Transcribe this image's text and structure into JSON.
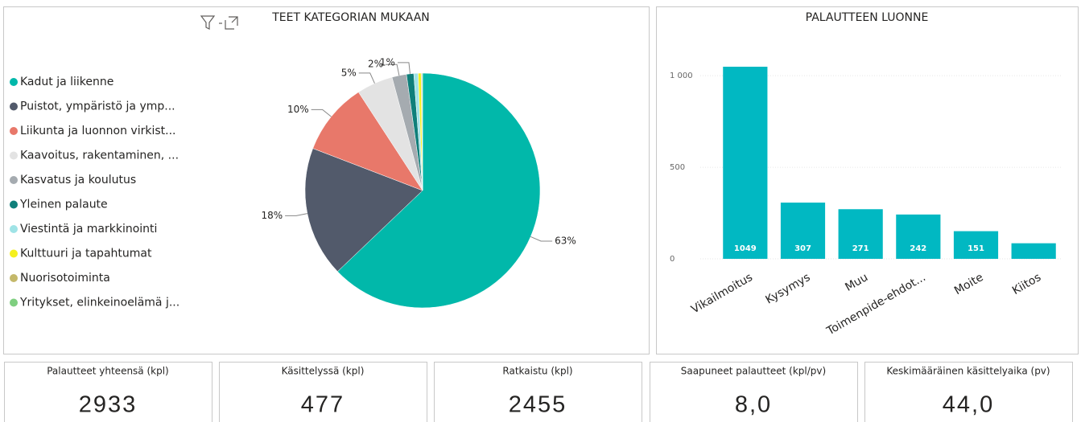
{
  "chart_data": [
    {
      "type": "pie",
      "title": "TEET KATEGORIAN MUKAAN",
      "categories": [
        "Kadut ja liikenne",
        "Puistot, ympäristö ja ymp...",
        "Liikunta ja luonnon virkist...",
        "Kaavoitus, rakentaminen, ...",
        "Kasvatus ja koulutus",
        "Yleinen palaute",
        "Viestintä ja markkinointi",
        "Kulttuuri ja tapahtumat",
        "Nuorisotoiminta",
        "Yritykset, elinkeinoelämä j..."
      ],
      "values": [
        63,
        18,
        10,
        5,
        2,
        1,
        0.6,
        0.4,
        0.1,
        0.1
      ],
      "value_labels": [
        "63%",
        "18%",
        "10%",
        "5%",
        "2%",
        "1%",
        null,
        null,
        null,
        null
      ],
      "colors": [
        "#01b8aa",
        "#525a6b",
        "#e8786a",
        "#e3e3e3",
        "#a5abb0",
        "#0f7f7a",
        "#9fe3e6",
        "#f5f01e",
        "#c4b86a",
        "#7fcf80"
      ],
      "legend": "left"
    },
    {
      "type": "bar",
      "title": "PALAUTTEEN LUONNE",
      "categories": [
        "Vikailmoitus",
        "Kysymys",
        "Muu",
        "Toimenpide-ehdot...",
        "Moite",
        "Kiitos"
      ],
      "values": [
        1049,
        307,
        271,
        242,
        151,
        85
      ],
      "value_labels": [
        "1049",
        "307",
        "271",
        "242",
        "151",
        null
      ],
      "color": "#01b8c2",
      "ylim": [
        0,
        1150
      ],
      "yticks": [
        0,
        500,
        {
          "value": 1000,
          "label": "1 000"
        }
      ],
      "grid": true
    }
  ],
  "cards": [
    {
      "title": "Palautteet yhteensä (kpl)",
      "value": "2933"
    },
    {
      "title": "Käsittelyssä (kpl)",
      "value": "477"
    },
    {
      "title": "Ratkaistu (kpl)",
      "value": "2455"
    },
    {
      "title": "Saapuneet palautteet (kpl/pv)",
      "value": "8,0"
    },
    {
      "title": "Keskimääräinen käsittelyaika (pv)",
      "value": "44,0"
    }
  ]
}
